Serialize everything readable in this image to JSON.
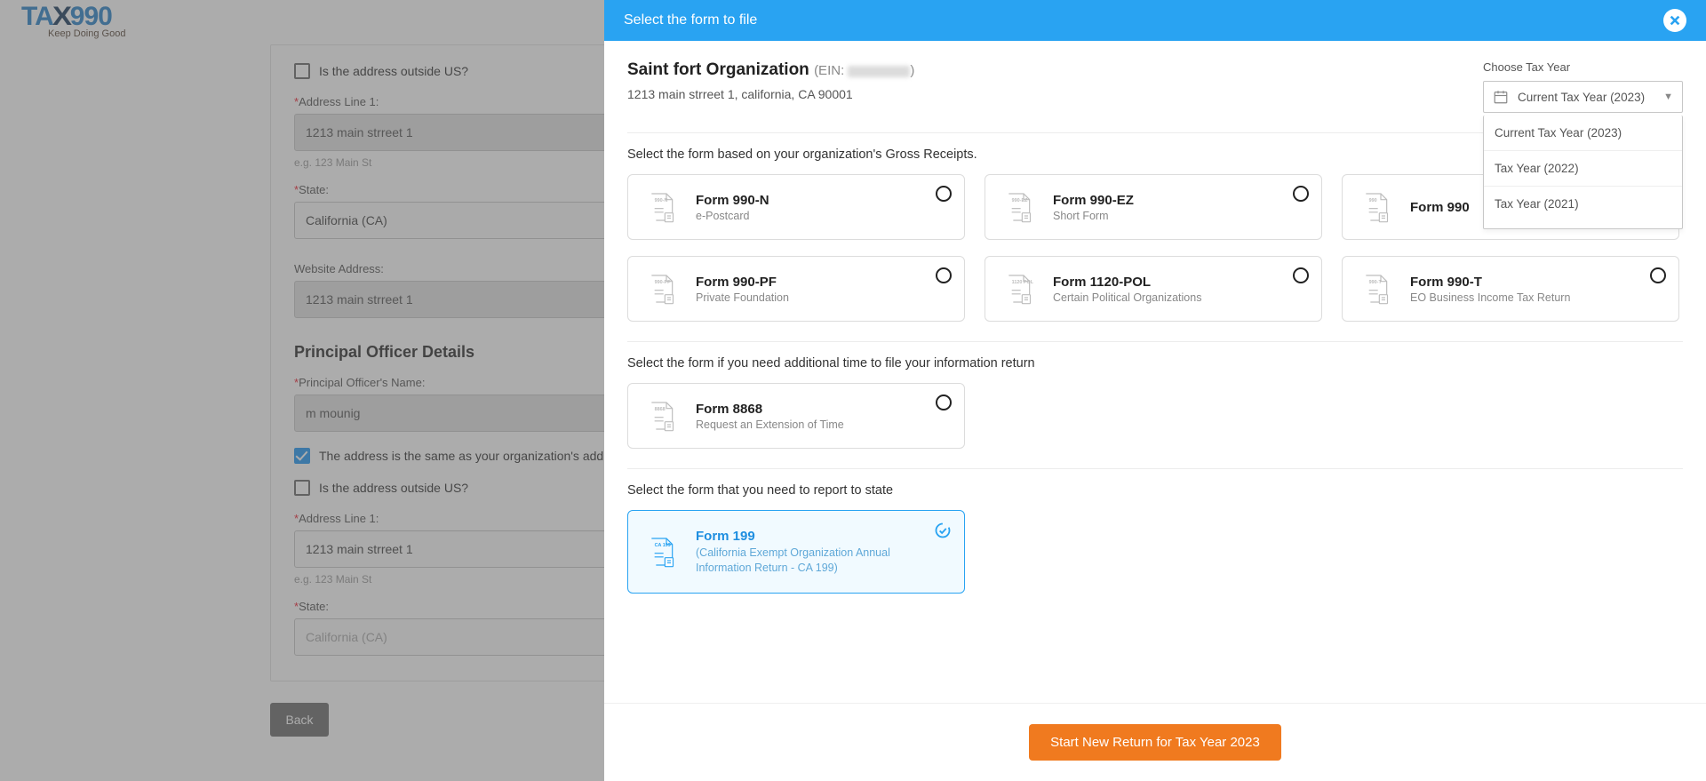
{
  "logo": {
    "t": "TA",
    "x": "X",
    "n": "990",
    "tagline": "Keep Doing Good"
  },
  "bg": {
    "outside_us_label": "Is the address outside US?",
    "addr1_label": "Address Line 1:",
    "addr1_value": "1213 main strreet 1",
    "addr1_hint": "e.g. 123 Main St",
    "state_label": "State:",
    "state_value": "California (CA)",
    "website_label": "Website Address:",
    "website_value": "1213 main strreet 1",
    "section_principal": "Principal Officer Details",
    "officer_name_label": "Principal Officer's Name:",
    "officer_name_value": "m mounig",
    "same_address_label": "The address is the same as your organization's address",
    "outside_us2_label": "Is the address outside US?",
    "addr2_label": "Address Line 1:",
    "addr2_value": "1213 main strreet 1",
    "addr2_hint": "e.g. 123 Main St",
    "state2_label": "State:",
    "state2_value": "California (CA)",
    "back_btn": "Back"
  },
  "modal": {
    "title": "Select the form to file",
    "org_name": "Saint fort Organization",
    "ein_prefix": "(EIN: ",
    "ein_suffix": ")",
    "org_address": "1213 main strreet 1, california, CA 90001",
    "choose_year_label": "Choose Tax Year",
    "year_selected": "Current Tax Year (2023)",
    "year_options": [
      "Current Tax Year (2023)",
      "Tax Year (2022)",
      "Tax Year (2021)"
    ],
    "gross_section": "Select the form based on your organization's Gross Receipts.",
    "forms_gross": [
      {
        "code": "990-N",
        "title": "Form 990-N",
        "sub": "e-Postcard"
      },
      {
        "code": "990-EZ",
        "title": "Form 990-EZ",
        "sub": "Short Form"
      },
      {
        "code": "990",
        "title": "Form 990",
        "sub": ""
      },
      {
        "code": "990-PF",
        "title": "Form 990-PF",
        "sub": "Private Foundation"
      },
      {
        "code": "1120 POL",
        "title": "Form 1120-POL",
        "sub": "Certain Political Organizations"
      },
      {
        "code": "990-T",
        "title": "Form 990-T",
        "sub": "EO Business Income Tax Return"
      }
    ],
    "ext_section": "Select the form if you need additional time to file your information return",
    "forms_ext": [
      {
        "code": "8868",
        "title": "Form 8868",
        "sub": "Request an Extension of Time"
      }
    ],
    "state_section": "Select the form that you need to report to state",
    "forms_state": [
      {
        "code": "CA 199",
        "title": "Form 199",
        "sub": "(California Exempt Organization Annual Information Return - CA 199)"
      }
    ],
    "start_btn": "Start New Return for Tax Year 2023",
    "colors": {
      "primary": "#29a3f2",
      "accent": "#f07a1f"
    }
  }
}
